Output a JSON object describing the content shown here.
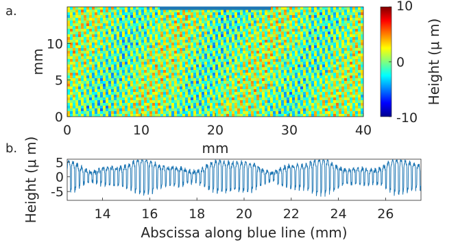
{
  "chart_data": [
    {
      "panel_label": "a.",
      "type": "heatmap",
      "xlabel": "mm",
      "ylabel": "mm",
      "xlim": [
        0,
        40
      ],
      "ylim": [
        0,
        15
      ],
      "x_ticks": [
        0,
        10,
        20,
        30,
        40
      ],
      "y_ticks": [
        0,
        5,
        10
      ],
      "colormap": "jet",
      "colorbar": {
        "label": "Height (μ m)",
        "label_display": "Height (μ m)",
        "range": [
          -10,
          10
        ],
        "ticks": [
          10,
          0,
          -10
        ]
      },
      "pattern": "dense diagonal ridges (height map of a textured surface), values mostly between -5 and 5 um",
      "blue_line": {
        "color": "#1f77b4",
        "x_range_mm": [
          12.5,
          27.5
        ],
        "y_mm": 15
      }
    },
    {
      "panel_label": "b.",
      "type": "line",
      "xlabel": "Abscissa along blue line (mm)",
      "ylabel": "Height (μ m)",
      "xlim": [
        12.5,
        27.5
      ],
      "ylim": [
        -8,
        6
      ],
      "x_ticks": [
        14,
        16,
        18,
        20,
        22,
        24,
        26
      ],
      "y_ticks": [
        5,
        0,
        -5
      ],
      "line_color": "#1f77b4",
      "series": [
        {
          "description": "Quasi-periodic profile, about 82 oscillations across 12.5-27.5 mm; peaks around +3 to +5, troughs around -3 to -7 um",
          "period_mm": 0.183,
          "peak_um": 4,
          "trough_um": -5
        }
      ]
    }
  ]
}
